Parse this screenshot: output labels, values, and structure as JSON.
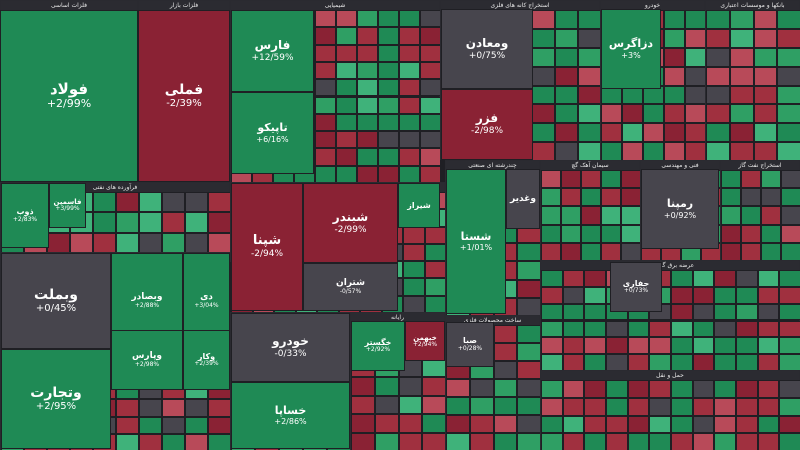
{
  "colors": {
    "strong_up": "#1f8a55",
    "up": "#2f9f64",
    "light_up": "#3fb27a",
    "strong_down": "#8a2234",
    "down": "#a0303f",
    "light_down": "#b84a59",
    "neutral": "#47454d",
    "title_bar": "#2b2b31",
    "background": "#1f1f24"
  },
  "chart_data": {
    "type": "heatmap",
    "sectors": [
      "فلزات اساسی",
      "فلزات بازار",
      "شیمیایی",
      "استخراج کانه های فلزی",
      "خودرو",
      "بانکها و موسسات اعتباری",
      "فرآورده های نفتی",
      "خودرو و قطعات",
      "چندرشته ای صنعتی",
      "سیمان آهک گچ",
      "فنی و مهندسی",
      "استخراج نفت گاز",
      "مخابرات",
      "سرمایه گذاریها",
      "رایانه",
      "ساخت محصولات فلزی",
      "عرضه برق گاز بخار",
      "حمل و نقل"
    ],
    "tiles": [
      {
        "name": "فولاد",
        "change": "+2/99%",
        "trend": "strong_up"
      },
      {
        "name": "فملی",
        "change": "-2/39%",
        "trend": "strong_down"
      },
      {
        "name": "فارس",
        "change": "+12/59%",
        "trend": "strong_up"
      },
      {
        "name": "تاپیکو",
        "change": "+6/16%",
        "trend": "strong_up"
      },
      {
        "name": "ومعادن",
        "change": "+0/75%",
        "trend": "neutral"
      },
      {
        "name": "فزر",
        "change": "-2/98%",
        "trend": "strong_down"
      },
      {
        "name": "دزاگرس",
        "change": "+3%",
        "trend": "strong_up"
      },
      {
        "name": "وبملت",
        "change": "+0/45%",
        "trend": "neutral"
      },
      {
        "name": "وتجارت",
        "change": "+2/95%",
        "trend": "strong_up"
      },
      {
        "name": "شپنا",
        "change": "-2/94%",
        "trend": "strong_down"
      },
      {
        "name": "شبندر",
        "change": "-2/99%",
        "trend": "strong_down"
      },
      {
        "name": "خودرو",
        "change": "-0/33%",
        "trend": "neutral"
      },
      {
        "name": "خساپا",
        "change": "+2/86%",
        "trend": "strong_up"
      },
      {
        "name": "شستا",
        "change": "+1/01%",
        "trend": "strong_up"
      },
      {
        "name": "رمپنا",
        "change": "+0/92%",
        "trend": "neutral"
      },
      {
        "name": "وبصادر",
        "change": "+2/88%",
        "trend": "strong_up"
      },
      {
        "name": "دی",
        "change": "+3/04%",
        "trend": "strong_up"
      },
      {
        "name": "وپارس",
        "change": "+2/98%",
        "trend": "strong_up"
      },
      {
        "name": "وکار",
        "change": "+2/39%",
        "trend": "strong_up"
      },
      {
        "name": "ذوب",
        "change": "+2/83%",
        "trend": "strong_up"
      },
      {
        "name": "فاسمین",
        "change": "+3/99%",
        "trend": "strong_up"
      },
      {
        "name": "شیراز",
        "change": "",
        "trend": "strong_up"
      },
      {
        "name": "شتران",
        "change": "-0/57%",
        "trend": "neutral"
      },
      {
        "name": "وغدیر",
        "change": "",
        "trend": "neutral"
      },
      {
        "name": "حفاری",
        "change": "+0/73%",
        "trend": "neutral"
      },
      {
        "name": "خگستر",
        "change": "+2/92%",
        "trend": "strong_up"
      },
      {
        "name": "خبهمن",
        "change": "+2/94%",
        "trend": "strong_down"
      },
      {
        "name": "صبا",
        "change": "+0/28%",
        "trend": "neutral"
      }
    ]
  }
}
